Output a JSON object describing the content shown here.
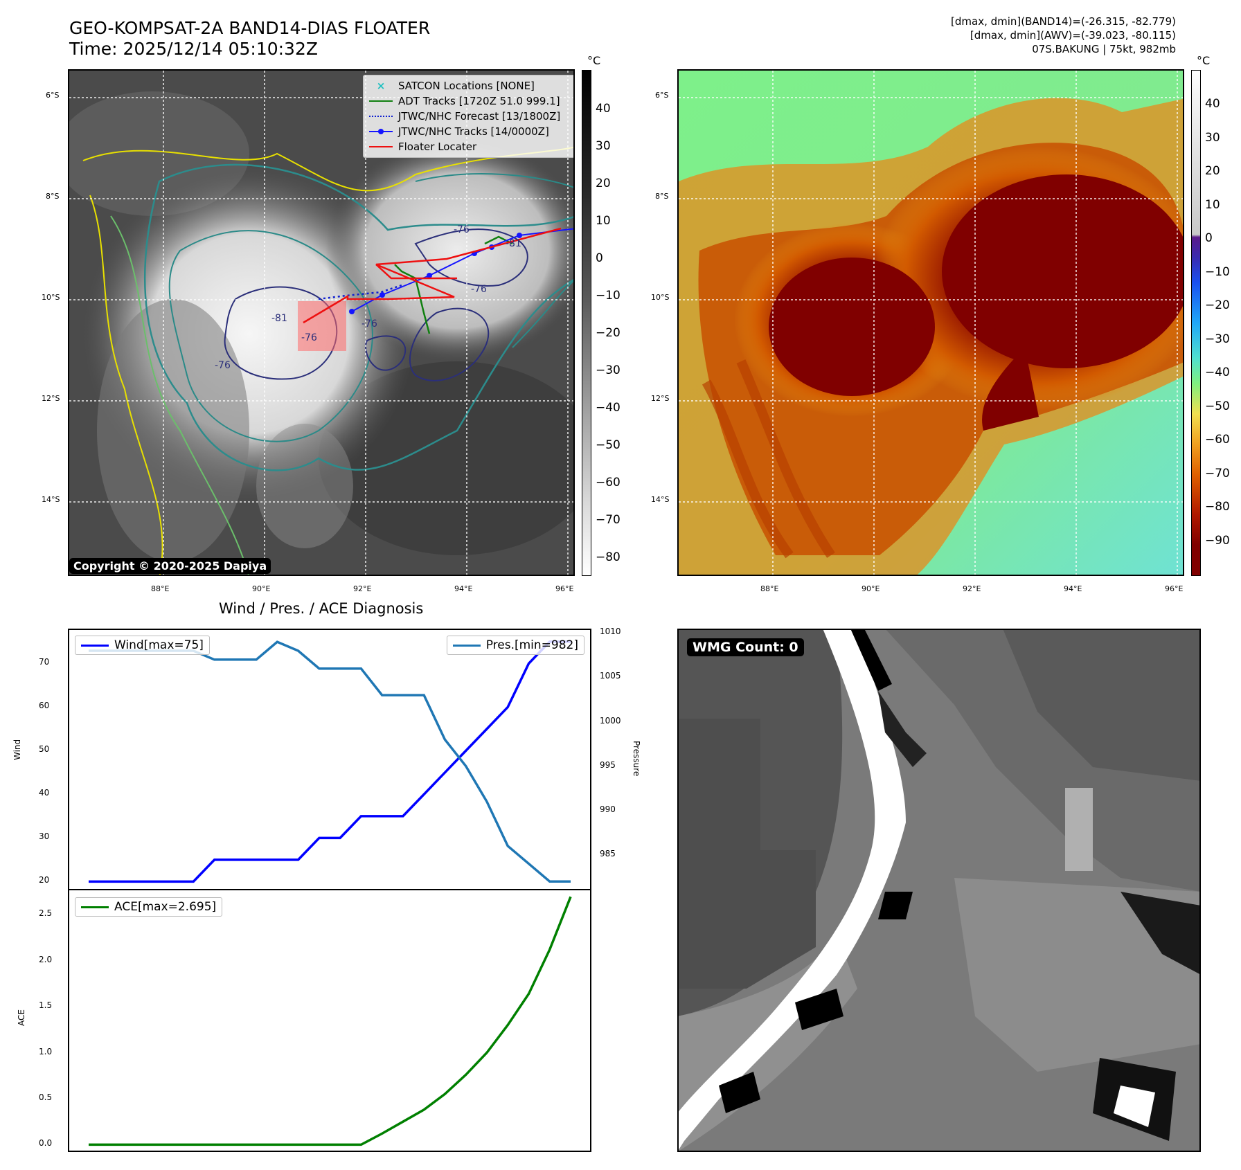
{
  "header": {
    "title_line1": "GEO-KOMPSAT-2A BAND14-DIAS FLOATER",
    "title_line2": "Time: 2025/12/14 05:10:32Z",
    "info_line1": "[dmax, dmin](BAND14)=(-26.315, -82.779)",
    "info_line2": "[dmax, dmin](AWV)=(-39.023, -80.115)",
    "info_line3": "07S.BAKUNG | 75kt, 982mb"
  },
  "map": {
    "lat_labels": [
      "6°S",
      "8°S",
      "10°S",
      "12°S",
      "14°S"
    ],
    "lon_labels": [
      "88°E",
      "90°E",
      "92°E",
      "94°E",
      "96°E"
    ],
    "contour_labels": [
      "-76",
      "-81",
      "-76",
      "-81",
      "-76",
      "-76",
      "-76"
    ],
    "copyright": "Copyright © 2020-2025 Dapiya",
    "legend": {
      "satcon": "SATCON Locations [NONE]",
      "adt": "ADT Tracks [1720Z 51.0 999.1]",
      "forecast": "JTWC/NHC Forecast [13/1800Z]",
      "tracks": "JTWC/NHC Tracks [14/0000Z]",
      "floater": "Floater Locater"
    }
  },
  "colorbar_gray": {
    "unit": "°C",
    "ticks": [
      "40",
      "30",
      "20",
      "10",
      "0",
      "−10",
      "−20",
      "−30",
      "−40",
      "−50",
      "−60",
      "−70",
      "−80"
    ]
  },
  "colorbar_color": {
    "unit": "°C",
    "ticks": [
      "40",
      "30",
      "20",
      "10",
      "0",
      "−10",
      "−20",
      "−30",
      "−40",
      "−50",
      "−60",
      "−70",
      "−80",
      "−90"
    ]
  },
  "wmg": {
    "label": "WMG Count: 0"
  },
  "chart_data": [
    {
      "type": "line",
      "title": "Wind / Pres. / ACE Diagnosis",
      "ylabel": "Wind",
      "ylabel_right": "Pressure",
      "ylim": [
        18,
        78
      ],
      "ylim_right": [
        981,
        1010.5
      ],
      "yticks": [
        20,
        30,
        40,
        50,
        60,
        70
      ],
      "yticks_right": [
        985,
        990,
        995,
        1000,
        1005,
        1010
      ],
      "x": [
        0,
        1,
        2,
        3,
        4,
        5,
        6,
        7,
        8,
        9,
        10,
        11,
        12,
        13,
        14,
        15,
        16,
        17,
        18,
        19,
        20,
        21,
        22,
        23
      ],
      "series": [
        {
          "name": "Wind[max=75]",
          "axis": "left",
          "color": "#0000ff",
          "values": [
            20,
            20,
            20,
            20,
            20,
            20,
            25,
            25,
            25,
            25,
            25,
            30,
            30,
            35,
            35,
            35,
            40,
            45,
            50,
            55,
            60,
            70,
            75,
            75
          ]
        },
        {
          "name": "Pres.[min=982]",
          "axis": "right",
          "color": "#1f77b4",
          "values": [
            1008,
            1008,
            1008,
            1008,
            1008,
            1008,
            1007,
            1007,
            1007,
            1009,
            1008,
            1006,
            1006,
            1006,
            1003,
            1003,
            1003,
            998,
            995,
            991,
            986,
            984,
            982,
            982
          ]
        }
      ]
    },
    {
      "type": "line",
      "ylabel": "ACE",
      "ylim": [
        -0.08,
        2.78
      ],
      "yticks": [
        "0.0",
        "0.5",
        "1.0",
        "1.5",
        "2.0",
        "2.5"
      ],
      "x": [
        0,
        1,
        2,
        3,
        4,
        5,
        6,
        7,
        8,
        9,
        10,
        11,
        12,
        13,
        14,
        15,
        16,
        17,
        18,
        19,
        20,
        21,
        22,
        23
      ],
      "series": [
        {
          "name": "ACE[max=2.695]",
          "color": "#008000",
          "values": [
            0,
            0,
            0,
            0,
            0,
            0,
            0,
            0,
            0,
            0,
            0,
            0,
            0,
            0,
            0.12,
            0.25,
            0.38,
            0.55,
            0.76,
            1.0,
            1.3,
            1.64,
            2.12,
            2.695
          ]
        }
      ]
    }
  ]
}
